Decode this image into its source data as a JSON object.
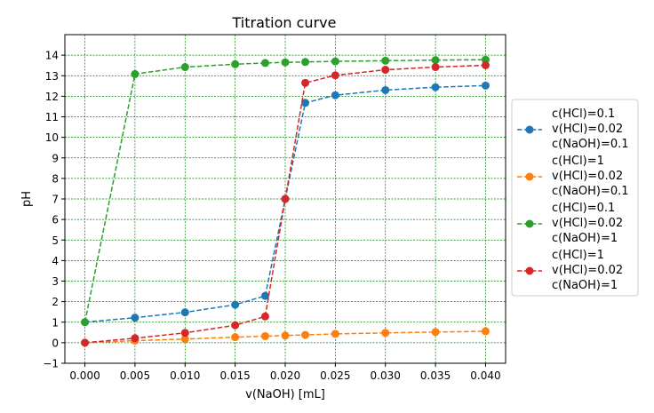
{
  "chart_data": {
    "type": "line",
    "title": "Titration curve",
    "xlabel": "v(NaOH) [mL]",
    "ylabel": "pH",
    "xlim": [
      -0.002,
      0.042
    ],
    "ylim": [
      -1,
      15
    ],
    "grid": true,
    "grid_color": "#008000",
    "legend_position": "outside-right",
    "x_ticks": [
      0.0,
      0.005,
      0.01,
      0.015,
      0.02,
      0.025,
      0.03,
      0.035,
      0.04
    ],
    "x_tick_labels": [
      "0.000",
      "0.005",
      "0.010",
      "0.015",
      "0.020",
      "0.025",
      "0.030",
      "0.035",
      "0.040"
    ],
    "y_ticks": [
      -1,
      0,
      1,
      2,
      3,
      4,
      5,
      6,
      7,
      8,
      9,
      10,
      11,
      12,
      13,
      14
    ],
    "y_tick_labels": [
      "−1",
      "0",
      "1",
      "2",
      "3",
      "4",
      "5",
      "6",
      "7",
      "8",
      "9",
      "10",
      "11",
      "12",
      "13",
      "14"
    ],
    "x": [
      0.0,
      0.005,
      0.01,
      0.015,
      0.018,
      0.02,
      0.022,
      0.025,
      0.03,
      0.035,
      0.04
    ],
    "series": [
      {
        "name_lines": [
          "c(HCl)=0.1",
          "v(HCl)=0.02",
          "c(NaOH)=0.1"
        ],
        "color": "#1f77b4",
        "values": [
          1.0,
          1.22,
          1.48,
          1.85,
          2.28,
          7.0,
          11.68,
          12.05,
          12.3,
          12.44,
          12.52
        ]
      },
      {
        "name_lines": [
          "c(HCl)=1",
          "v(HCl)=0.02",
          "c(NaOH)=0.1"
        ],
        "color": "#ff7f0e",
        "values": [
          0.0,
          0.1,
          0.18,
          0.27,
          0.32,
          0.35,
          0.38,
          0.43,
          0.48,
          0.52,
          0.56
        ]
      },
      {
        "name_lines": [
          "c(HCl)=0.1",
          "v(HCl)=0.02",
          "c(NaOH)=1"
        ],
        "color": "#2ca02c",
        "values": [
          1.0,
          13.08,
          13.42,
          13.56,
          13.62,
          13.65,
          13.67,
          13.7,
          13.73,
          13.76,
          13.78
        ]
      },
      {
        "name_lines": [
          "c(HCl)=1",
          "v(HCl)=0.02",
          "c(NaOH)=1"
        ],
        "color": "#d62728",
        "values": [
          0.0,
          0.22,
          0.48,
          0.85,
          1.28,
          7.0,
          12.65,
          13.02,
          13.29,
          13.42,
          13.51
        ]
      }
    ]
  }
}
